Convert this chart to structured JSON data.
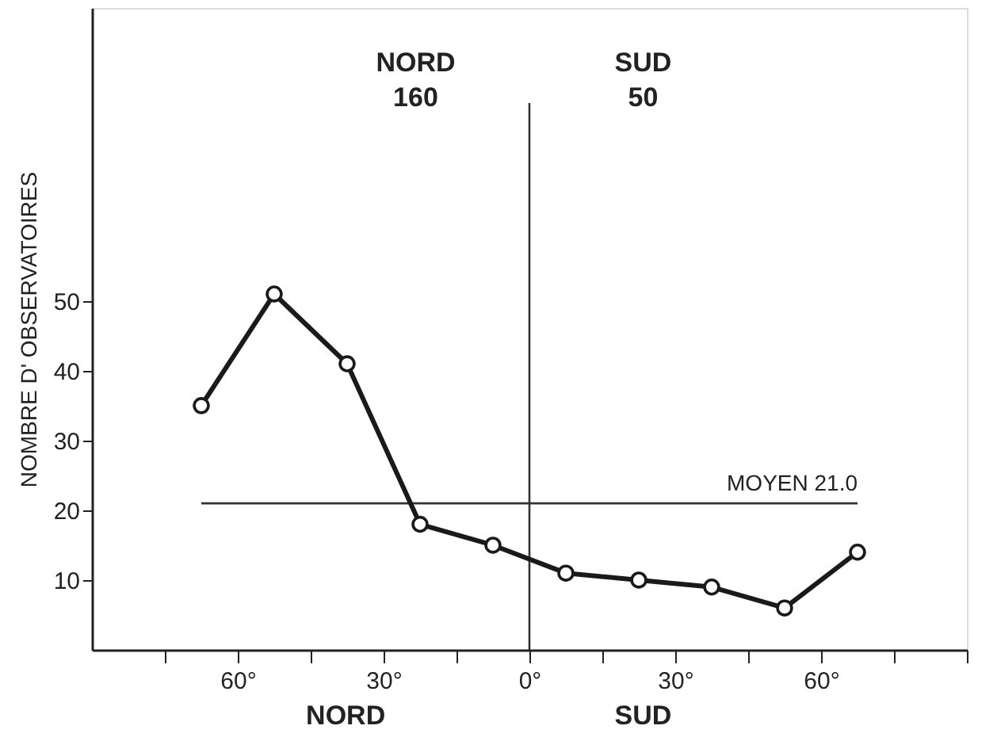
{
  "chart_data": {
    "type": "line",
    "ylabel": "NOMBRE  D' OBSERVATOIRES",
    "x": [
      -67.5,
      -52.5,
      -37.5,
      -22.5,
      -7.5,
      7.5,
      22.5,
      37.5,
      52.5,
      67.5
    ],
    "series": [
      {
        "color": "#1a1a1a",
        "values": [
          35,
          51,
          41,
          18,
          15,
          11,
          10,
          9,
          6,
          14
        ]
      }
    ],
    "xlim": [
      -90,
      90
    ],
    "xticks": [
      {
        "value": -75,
        "label": null
      },
      {
        "value": -60,
        "label": "60°"
      },
      {
        "value": -45,
        "label": null
      },
      {
        "value": -30,
        "label": "30°"
      },
      {
        "value": -15,
        "label": null
      },
      {
        "value": 0,
        "label": "0°"
      },
      {
        "value": 15,
        "label": null
      },
      {
        "value": 30,
        "label": "30°"
      },
      {
        "value": 45,
        "label": null
      },
      {
        "value": 60,
        "label": "60°"
      },
      {
        "value": 75,
        "label": null
      },
      {
        "value": 90,
        "label": null
      }
    ],
    "ylim": [
      0,
      92
    ],
    "yticks": [
      10,
      20,
      30,
      40,
      50
    ],
    "ref_lines": [
      {
        "axis": "y",
        "value": 21.0,
        "label": "MOYEN  21.0",
        "color": "#333333"
      },
      {
        "axis": "x",
        "value": 0,
        "label": null,
        "color": "#333333"
      }
    ],
    "annotations": [
      "NORD\n160",
      "SUD\n50",
      "NORD",
      "SUD"
    ],
    "marker": "circle",
    "line_style": "solid",
    "grid": false
  }
}
